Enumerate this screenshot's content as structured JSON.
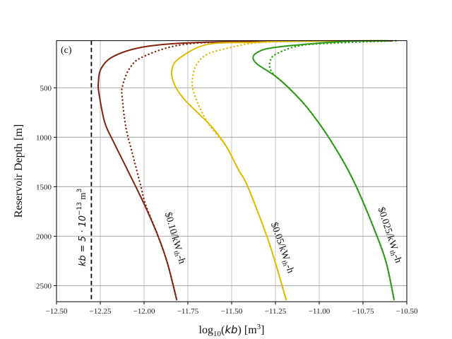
{
  "chart_data": {
    "type": "line",
    "panel_label": "(c)",
    "xlabel": {
      "pre": "log",
      "sub": "10",
      "mid": "(",
      "var": "kb",
      "post": ") [m",
      "sup": "3",
      "end": "]"
    },
    "ylabel": "Reservoir Depth [m]",
    "xlim": [
      -12.5,
      -10.5
    ],
    "ylim": [
      2662,
      24
    ],
    "y_inverted": true,
    "grid": true,
    "xticks": [
      "-12.50",
      "-12.25",
      "-12.00",
      "-11.75",
      "-11.50",
      "-11.25",
      "-11.00",
      "-10.75",
      "-10.50"
    ],
    "xtick_values": [
      -12.5,
      -12.25,
      -12.0,
      -11.75,
      -11.5,
      -11.25,
      -11.0,
      -10.75,
      -10.5
    ],
    "yticks": [
      "500",
      "1000",
      "1500",
      "2000",
      "2500"
    ],
    "ytick_values": [
      500,
      1000,
      1500,
      2000,
      2500
    ],
    "reference_line": {
      "x": -12.301,
      "style": "dashed",
      "color": "#000000",
      "label": {
        "pre": "kb = 5 · 10",
        "sup": "−13",
        "post": " m",
        "sup2": "3"
      }
    },
    "series": [
      {
        "label": {
          "main": "$0.10/kW",
          "sub": "th",
          "tail": "-h"
        },
        "color": "#82220f",
        "style": "solid",
        "x": [
          -10.583,
          -11.37,
          -11.773,
          -12.015,
          -12.176,
          -12.245,
          -12.261,
          -12.257,
          -12.225,
          -12.176,
          -12.096,
          -12.003,
          -11.922,
          -11.866,
          -11.813
        ],
        "y": [
          26,
          30,
          48,
          91,
          184,
          305,
          448,
          562,
          848,
          1041,
          1326,
          1662,
          1991,
          2276,
          2648
        ]
      },
      {
        "color": "#82220f",
        "style": "dotted",
        "x": [
          -10.563,
          -11.37,
          -11.773,
          -12.003,
          -12.083,
          -12.124,
          -12.124,
          -12.104,
          -12.067,
          -12.043,
          -12.015,
          -11.991,
          -11.922,
          -11.866,
          -11.813
        ],
        "y": [
          25,
          33,
          62,
          184,
          305,
          491,
          612,
          898,
          1162,
          1326,
          1519,
          1683,
          1991,
          2276,
          2648
        ]
      },
      {
        "label": {
          "main": "$0.05/kW",
          "sub": "th",
          "tail": "-h"
        },
        "color": "#e2bb00",
        "style": "solid",
        "x": [
          -10.624,
          -11.128,
          -11.37,
          -11.64,
          -11.801,
          -11.842,
          -11.826,
          -11.773,
          -11.692,
          -11.612,
          -11.531,
          -11.462,
          -11.41,
          -11.301,
          -11.249,
          -11.188
        ],
        "y": [
          25,
          27,
          41,
          62,
          205,
          326,
          469,
          612,
          755,
          898,
          1091,
          1326,
          1491,
          1991,
          2276,
          2648
        ]
      },
      {
        "color": "#e2bb00",
        "style": "dotted",
        "x": [
          -10.563,
          -11.208,
          -11.37,
          -11.503,
          -11.64,
          -11.704,
          -11.724,
          -11.721,
          -11.692,
          -11.652,
          -11.612,
          -11.531,
          -11.462,
          -11.41,
          -11.301,
          -11.249,
          -11.188
        ],
        "y": [
          25,
          34,
          48,
          91,
          162,
          276,
          419,
          519,
          662,
          805,
          912,
          1091,
          1326,
          1491,
          1991,
          2276,
          2648
        ]
      },
      {
        "label": {
          "main": "$0.025/kW",
          "sub": "th",
          "tail": "-h"
        },
        "color": "#2a9a12",
        "style": "solid",
        "x": [
          -10.611,
          -10.805,
          -11.047,
          -11.277,
          -11.358,
          -11.378,
          -11.358,
          -11.317,
          -11.249,
          -11.18,
          -11.087,
          -10.994,
          -10.914,
          -10.837,
          -10.765,
          -10.672,
          -10.616,
          -10.572
        ],
        "y": [
          25,
          28,
          55,
          98,
          148,
          198,
          255,
          305,
          384,
          491,
          662,
          876,
          1091,
          1326,
          1591,
          1991,
          2276,
          2648
        ]
      },
      {
        "color": "#2a9a12",
        "style": "dotted",
        "x": [
          -10.563,
          -10.914,
          -11.116,
          -11.249,
          -11.281,
          -11.281,
          -11.261,
          -11.249,
          -11.18,
          -11.087,
          -10.994,
          -10.914,
          -10.837,
          -10.765,
          -10.672,
          -10.616,
          -10.572
        ],
        "y": [
          25,
          48,
          76,
          162,
          234,
          305,
          362,
          384,
          491,
          662,
          876,
          1091,
          1326,
          1591,
          1991,
          2276,
          2648
        ]
      }
    ]
  }
}
